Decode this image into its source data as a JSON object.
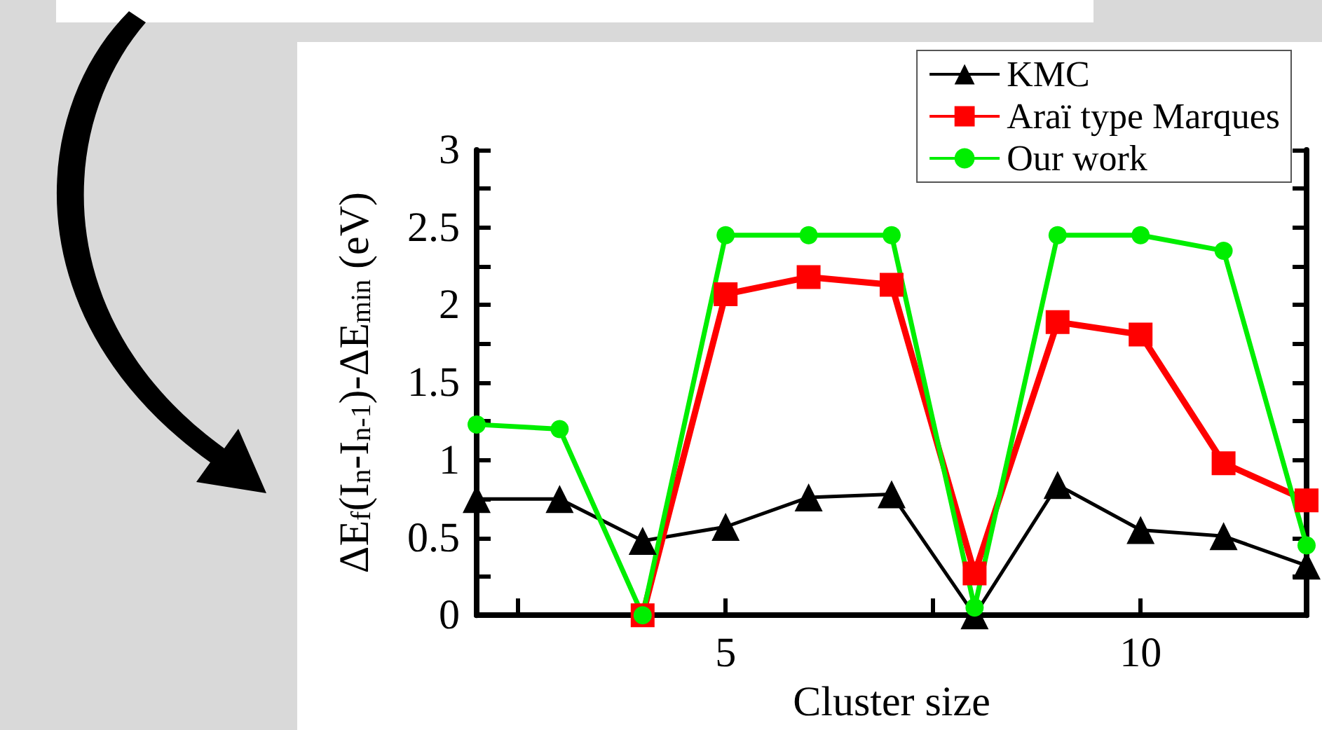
{
  "chart_data": {
    "type": "line",
    "xlabel": "Cluster size",
    "ylabel": "ΔE$_{f}$(I$_{n}$-I$_{n-1}$)-ΔE$_{min}$ (eV)",
    "x": [
      2,
      3,
      4,
      5,
      6,
      7,
      8,
      9,
      10,
      11,
      12
    ],
    "series": [
      {
        "name": "KMC",
        "color": "#000000",
        "marker": "triangle",
        "values": [
          0.75,
          0.75,
          0.48,
          0.57,
          0.76,
          0.78,
          0.0,
          0.84,
          0.55,
          0.51,
          0.32
        ]
      },
      {
        "name": "Araï type Marques",
        "color": "#ff0000",
        "marker": "square",
        "values": [
          null,
          null,
          0.0,
          2.07,
          2.18,
          2.13,
          0.27,
          1.89,
          1.81,
          0.98,
          0.74
        ]
      },
      {
        "name": "Our work",
        "color": "#00ee00",
        "marker": "circle",
        "values": [
          1.23,
          1.2,
          0.0,
          2.45,
          2.45,
          2.45,
          0.05,
          2.45,
          2.45,
          2.35,
          0.45
        ]
      }
    ],
    "xlim": [
      2,
      12
    ],
    "xticks": [
      {
        "value": 2.5,
        "label": null
      },
      5,
      {
        "value": 7.5,
        "label": null
      },
      10
    ],
    "ylim": [
      0,
      3
    ],
    "yticks": [
      0,
      {
        "value": 0.25,
        "label": null
      },
      0.5,
      {
        "value": 0.75,
        "label": null
      },
      1,
      {
        "value": 1.25,
        "label": null
      },
      1.5,
      {
        "value": 1.75,
        "label": null
      },
      2,
      {
        "value": 2.25,
        "label": null
      },
      2.5,
      {
        "value": 2.75,
        "label": null
      },
      3
    ],
    "legend": "top right",
    "grid": false,
    "line_style": "solid"
  }
}
